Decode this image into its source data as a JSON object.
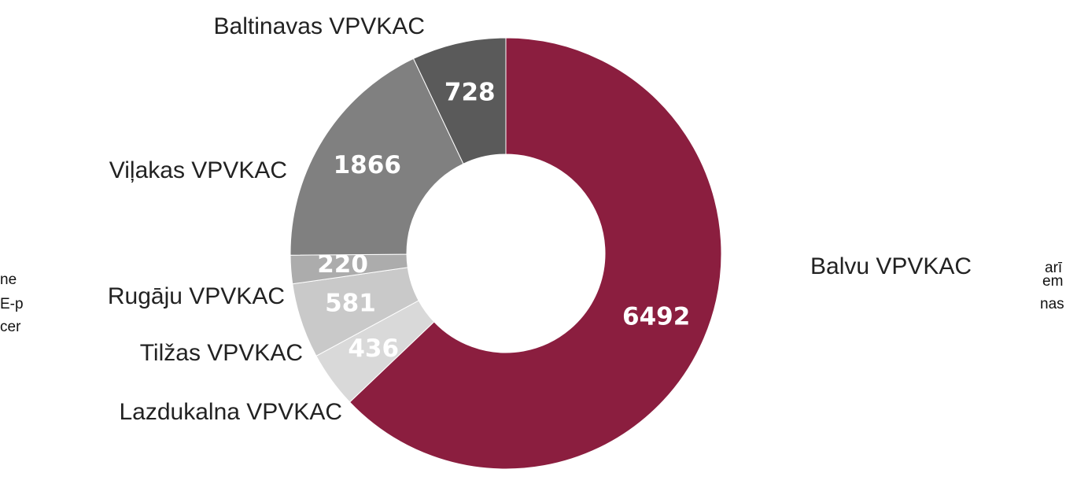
{
  "chart_data": {
    "type": "donut",
    "categories": [
      "Balvu VPVKAC",
      "Lazdukalna VPVKAC",
      "Tilžas VPVKAC",
      "Rugāju VPVKAC",
      "Viļakas VPVKAC",
      "Baltinavas VPVKAC"
    ],
    "values": [
      6492,
      436,
      581,
      220,
      1866,
      728
    ],
    "colors": [
      "#8b1e3f",
      "#d9d9d9",
      "#c9c9c9",
      "#acacac",
      "#808080",
      "#5a5a5a"
    ]
  },
  "document_fragments": {
    "left": [
      "ne",
      "E-p",
      "cer"
    ],
    "right": [
      "arī",
      "em",
      "nas"
    ]
  }
}
